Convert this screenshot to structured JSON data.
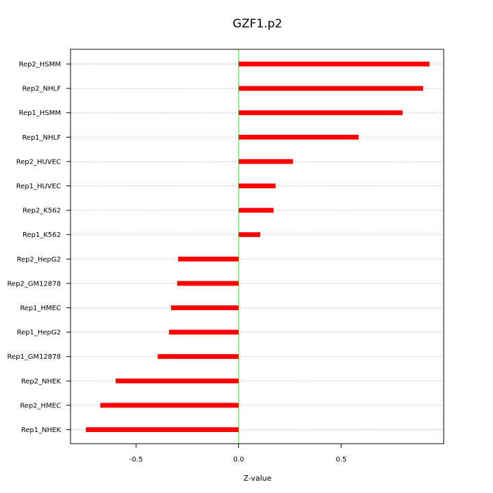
{
  "chart_data": {
    "type": "bar",
    "orientation": "horizontal",
    "title": "GZF1.p2",
    "xlabel": "Z-value",
    "ylabel": "",
    "xlim": [
      -0.82,
      1.0
    ],
    "xticks": [
      -0.5,
      0.0,
      0.5
    ],
    "xtick_labels": [
      "-0.5",
      "0.0",
      "0.5"
    ],
    "zero_line_color": "#66dd66",
    "bar_color": "#ff0000",
    "grid": true,
    "grid_axis": "y",
    "categories": [
      "Rep2_HSMM",
      "Rep2_NHLF",
      "Rep1_HSMM",
      "Rep1_NHLF",
      "Rep2_HUVEC",
      "Rep1_HUVEC",
      "Rep2_K562",
      "Rep1_K562",
      "Rep2_HepG2",
      "Rep2_GM12878",
      "Rep1_HMEC",
      "Rep1_HepG2",
      "Rep1_GM12878",
      "Rep2_NHEK",
      "Rep2_HMEC",
      "Rep1_NHEK"
    ],
    "values": [
      0.93,
      0.9,
      0.8,
      0.585,
      0.265,
      0.18,
      0.17,
      0.105,
      -0.295,
      -0.3,
      -0.33,
      -0.34,
      -0.395,
      -0.6,
      -0.675,
      -0.745
    ]
  }
}
